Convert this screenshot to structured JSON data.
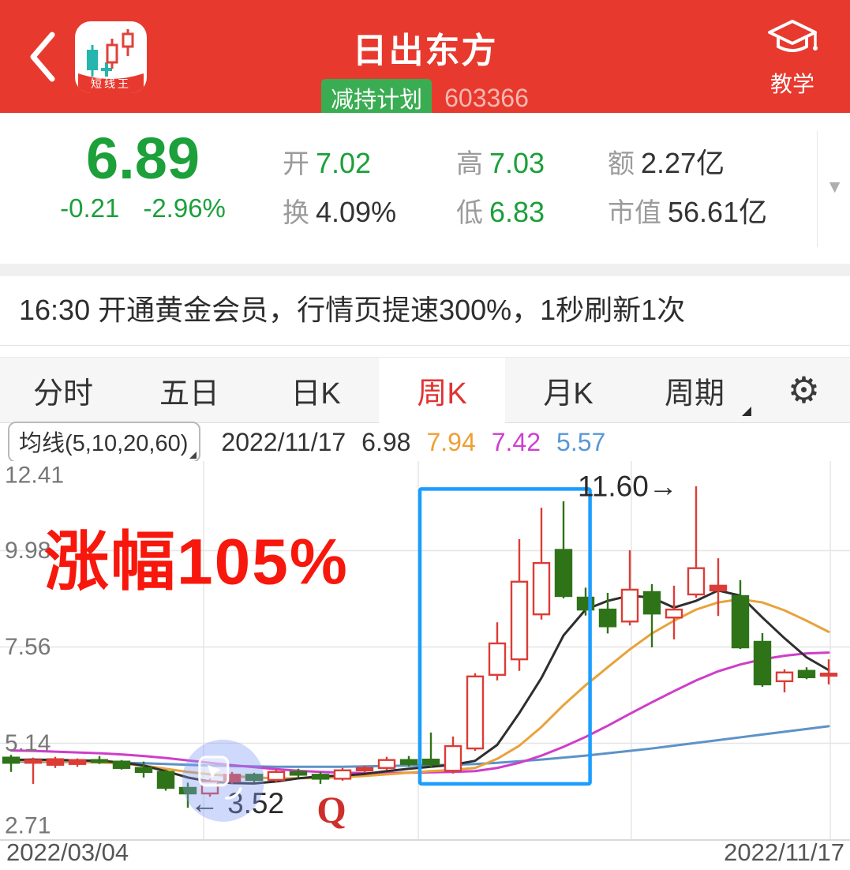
{
  "colors": {
    "header_bg": "#e8392e",
    "green": "#1ba03a",
    "badge_bg": "#3aad52",
    "tab_active": "#e03333",
    "candle_red": "#dc3c36",
    "candle_green": "#2f7319",
    "ma5": "#2e2e2e",
    "ma10": "#e9a23b",
    "ma20": "#ce3ec9",
    "ma60": "#5d92c8",
    "box_blue": "#1b9dff",
    "annotation_red": "#f7170c",
    "q_red": "#cf2f2b"
  },
  "header": {
    "title": "日出东方",
    "badge": "减持计划",
    "code": "603366",
    "app_icon_label": "短线王",
    "teach_label": "教学"
  },
  "quote": {
    "price": "6.89",
    "change": "-0.21",
    "change_pct": "-2.96%",
    "stats_rows": [
      [
        {
          "label": "开",
          "value": "7.02",
          "tone": "green"
        },
        {
          "label": "高",
          "value": "7.03",
          "tone": "green"
        },
        {
          "label": "额",
          "value": "2.27亿",
          "tone": "dark"
        }
      ],
      [
        {
          "label": "换",
          "value": "4.09%",
          "tone": "dark"
        },
        {
          "label": "低",
          "value": "6.83",
          "tone": "green"
        },
        {
          "label": "市值",
          "value": "56.61亿",
          "tone": "dark"
        }
      ]
    ]
  },
  "ticker": {
    "text": "16:30 开通黄金会员，行情页提速300%，1秒刷新1次"
  },
  "tabs": {
    "items": [
      {
        "label": "分时",
        "selected": false,
        "dropdown": false
      },
      {
        "label": "五日",
        "selected": false,
        "dropdown": false
      },
      {
        "label": "日K",
        "selected": false,
        "dropdown": false
      },
      {
        "label": "周K",
        "selected": true,
        "dropdown": false
      },
      {
        "label": "月K",
        "selected": false,
        "dropdown": false
      },
      {
        "label": "周期",
        "selected": false,
        "dropdown": true
      }
    ],
    "gear_icon": "⚙"
  },
  "legend": {
    "ma_button": "均线(5,10,20,60)",
    "date": "2022/11/17",
    "ma5": "6.98",
    "ma10": "7.94",
    "ma20": "7.42",
    "ma60": "5.57"
  },
  "chart_data": {
    "type": "candlestick",
    "period": "weekly",
    "title": "日出东方 603366 周K",
    "x_start_label": "2022/03/04",
    "x_end_label": "2022/11/17",
    "y_ticks": [
      12.41,
      9.98,
      7.56,
      5.14,
      2.71
    ],
    "y_range": [
      2.71,
      12.41
    ],
    "candles": [
      [
        4.78,
        4.85,
        4.42,
        4.65
      ],
      [
        4.65,
        4.78,
        4.12,
        4.72
      ],
      [
        4.6,
        4.8,
        4.52,
        4.74
      ],
      [
        4.62,
        4.76,
        4.55,
        4.72
      ],
      [
        4.72,
        4.82,
        4.62,
        4.68
      ],
      [
        4.68,
        4.72,
        4.48,
        4.52
      ],
      [
        4.52,
        4.68,
        4.28,
        4.42
      ],
      [
        4.42,
        4.48,
        3.95,
        4.02
      ],
      [
        4.02,
        4.15,
        3.52,
        3.88
      ],
      [
        3.88,
        4.25,
        3.8,
        4.18
      ],
      [
        4.18,
        4.42,
        4.12,
        4.35
      ],
      [
        4.35,
        4.4,
        4.15,
        4.22
      ],
      [
        4.22,
        4.48,
        4.16,
        4.42
      ],
      [
        4.42,
        4.5,
        4.28,
        4.35
      ],
      [
        4.35,
        4.42,
        4.12,
        4.25
      ],
      [
        4.25,
        4.52,
        4.2,
        4.46
      ],
      [
        4.46,
        4.58,
        4.4,
        4.52
      ],
      [
        4.52,
        4.8,
        4.46,
        4.72
      ],
      [
        4.72,
        4.82,
        4.55,
        4.62
      ],
      [
        4.73,
        5.41,
        4.52,
        4.61
      ],
      [
        4.45,
        5.31,
        4.38,
        5.07
      ],
      [
        5.01,
        6.9,
        4.95,
        6.82
      ],
      [
        6.86,
        8.18,
        6.72,
        7.65
      ],
      [
        7.25,
        10.27,
        6.96,
        9.2
      ],
      [
        8.38,
        11.06,
        8.25,
        9.67
      ],
      [
        10.0,
        11.22,
        8.78,
        8.84
      ],
      [
        8.8,
        9.05,
        8.35,
        8.5
      ],
      [
        8.5,
        8.92,
        7.9,
        8.08
      ],
      [
        8.2,
        9.99,
        8.1,
        9.0
      ],
      [
        8.94,
        9.14,
        7.55,
        8.4
      ],
      [
        8.3,
        9.1,
        7.75,
        8.5
      ],
      [
        8.88,
        11.6,
        8.8,
        9.54
      ],
      [
        8.98,
        9.79,
        8.34,
        9.1
      ],
      [
        8.84,
        9.24,
        7.51,
        7.55
      ],
      [
        7.69,
        7.91,
        6.56,
        6.62
      ],
      [
        6.7,
        7.0,
        6.42,
        6.92
      ],
      [
        6.96,
        7.05,
        6.75,
        6.8
      ],
      [
        6.86,
        7.25,
        6.62,
        6.89
      ]
    ],
    "ma_series": [
      {
        "name": "MA5",
        "color_key": "ma5",
        "values": [
          4.72,
          4.73,
          4.72,
          4.71,
          4.7,
          4.66,
          4.58,
          4.44,
          4.28,
          4.18,
          4.14,
          4.13,
          4.18,
          4.26,
          4.31,
          4.33,
          4.37,
          4.44,
          4.5,
          4.55,
          4.6,
          4.7,
          5.1,
          5.9,
          6.78,
          7.85,
          8.5,
          8.72,
          8.85,
          8.8,
          8.55,
          8.72,
          8.98,
          8.85,
          8.3,
          7.78,
          7.3,
          6.98
        ]
      },
      {
        "name": "MA10",
        "color_key": "ma10",
        "values": [
          4.7,
          4.7,
          4.69,
          4.68,
          4.66,
          4.63,
          4.58,
          4.5,
          4.42,
          4.36,
          4.32,
          4.28,
          4.26,
          4.26,
          4.27,
          4.29,
          4.32,
          4.36,
          4.4,
          4.44,
          4.47,
          4.52,
          4.75,
          5.08,
          5.55,
          6.1,
          6.6,
          7.05,
          7.5,
          7.9,
          8.22,
          8.5,
          8.68,
          8.76,
          8.68,
          8.48,
          8.22,
          7.94
        ]
      },
      {
        "name": "MA20",
        "color_key": "ma20",
        "values": [
          4.96,
          4.95,
          4.93,
          4.91,
          4.89,
          4.86,
          4.82,
          4.77,
          4.71,
          4.65,
          4.59,
          4.54,
          4.49,
          4.45,
          4.42,
          4.4,
          4.39,
          4.39,
          4.4,
          4.41,
          4.42,
          4.44,
          4.52,
          4.65,
          4.83,
          5.05,
          5.3,
          5.58,
          5.88,
          6.17,
          6.45,
          6.72,
          6.95,
          7.12,
          7.25,
          7.34,
          7.4,
          7.42
        ]
      },
      {
        "name": "MA60",
        "color_key": "ma60",
        "values": [
          4.68,
          4.68,
          4.67,
          4.67,
          4.66,
          4.65,
          4.64,
          4.62,
          4.6,
          4.58,
          4.57,
          4.56,
          4.55,
          4.55,
          4.55,
          4.55,
          4.56,
          4.57,
          4.58,
          4.59,
          4.6,
          4.62,
          4.65,
          4.69,
          4.73,
          4.78,
          4.83,
          4.89,
          4.95,
          5.01,
          5.08,
          5.15,
          5.22,
          5.29,
          5.36,
          5.43,
          5.5,
          5.57
        ]
      }
    ],
    "annotations": {
      "gain_text": {
        "text": "涨幅105%",
        "week": 2.0,
        "value": 9.15
      },
      "high_marker": {
        "text": "11.60→",
        "week": 30.6,
        "value": 11.35
      },
      "low_marker": {
        "text": "← 3.52",
        "week": 8.1,
        "value": 3.38
      },
      "q_marker": {
        "text": "Q",
        "week": 14.5,
        "value": 3.15
      },
      "highlight_box": {
        "week_range": [
          18.5,
          26.2
        ],
        "value_range": [
          4.12,
          11.53
        ]
      },
      "touch_circle": {
        "week": 9.6,
        "value": 4.2,
        "radius_px": 52
      }
    },
    "legend_position": "top-left",
    "grid": true
  }
}
